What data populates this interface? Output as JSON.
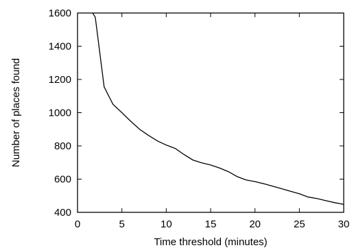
{
  "chart_data": {
    "type": "line",
    "title": "",
    "xlabel": "Time threshold (minutes)",
    "ylabel": "Number of places found",
    "xlim": [
      0,
      30
    ],
    "ylim": [
      400,
      1600
    ],
    "xticks": [
      0,
      5,
      10,
      15,
      20,
      25,
      30
    ],
    "yticks": [
      400,
      600,
      800,
      1000,
      1200,
      1400,
      1600
    ],
    "grid": false,
    "legend": "none",
    "line_color": "#000000",
    "series": [
      {
        "x": [
          1.7,
          2,
          3,
          4,
          5,
          6,
          7,
          8,
          9,
          10,
          11,
          12,
          13,
          14,
          15,
          16,
          17,
          18,
          19,
          20,
          21,
          22,
          23,
          24,
          25,
          26,
          27,
          28,
          29,
          30
        ],
        "values": [
          1600,
          1575,
          1155,
          1050,
          1000,
          948,
          900,
          863,
          830,
          805,
          785,
          748,
          715,
          698,
          685,
          667,
          645,
          615,
          595,
          585,
          572,
          557,
          542,
          527,
          512,
          492,
          483,
          470,
          458,
          448
        ]
      }
    ]
  }
}
